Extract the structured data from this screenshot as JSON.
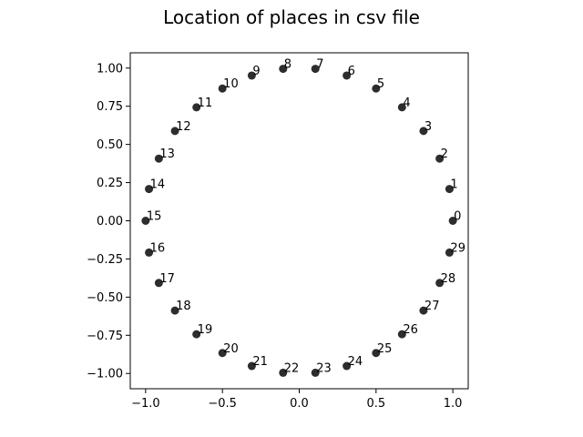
{
  "chart_data": {
    "type": "scatter",
    "title": "Location of places in csv file",
    "xlabel": "",
    "ylabel": "",
    "xlim": [
      -1.1,
      1.1
    ],
    "ylim": [
      -1.1,
      1.1
    ],
    "grid": false,
    "marker_color": "#222222",
    "x_ticks": [
      {
        "value": -1.0,
        "label": "−1.0"
      },
      {
        "value": -0.5,
        "label": "−0.5"
      },
      {
        "value": 0.0,
        "label": "0.0"
      },
      {
        "value": 0.5,
        "label": "0.5"
      },
      {
        "value": 1.0,
        "label": "1.0"
      }
    ],
    "y_ticks": [
      {
        "value": 1.0,
        "label": "1.00"
      },
      {
        "value": 0.75,
        "label": "0.75"
      },
      {
        "value": 0.5,
        "label": "0.50"
      },
      {
        "value": 0.25,
        "label": "0.25"
      },
      {
        "value": 0.0,
        "label": "0.00"
      },
      {
        "value": -0.25,
        "label": "−0.25"
      },
      {
        "value": -0.5,
        "label": "−0.50"
      },
      {
        "value": -0.75,
        "label": "−0.75"
      },
      {
        "value": -1.0,
        "label": "−1.00"
      }
    ],
    "points": [
      {
        "label": "0",
        "x": 1.0,
        "y": 0.0
      },
      {
        "label": "1",
        "x": 0.978,
        "y": 0.208
      },
      {
        "label": "2",
        "x": 0.914,
        "y": 0.407
      },
      {
        "label": "3",
        "x": 0.809,
        "y": 0.588
      },
      {
        "label": "4",
        "x": 0.669,
        "y": 0.743
      },
      {
        "label": "5",
        "x": 0.5,
        "y": 0.866
      },
      {
        "label": "6",
        "x": 0.309,
        "y": 0.951
      },
      {
        "label": "7",
        "x": 0.105,
        "y": 0.995
      },
      {
        "label": "8",
        "x": -0.105,
        "y": 0.995
      },
      {
        "label": "9",
        "x": -0.309,
        "y": 0.951
      },
      {
        "label": "10",
        "x": -0.5,
        "y": 0.866
      },
      {
        "label": "11",
        "x": -0.669,
        "y": 0.743
      },
      {
        "label": "12",
        "x": -0.809,
        "y": 0.588
      },
      {
        "label": "13",
        "x": -0.914,
        "y": 0.407
      },
      {
        "label": "14",
        "x": -0.978,
        "y": 0.208
      },
      {
        "label": "15",
        "x": -1.0,
        "y": 0.0
      },
      {
        "label": "16",
        "x": -0.978,
        "y": -0.208
      },
      {
        "label": "17",
        "x": -0.914,
        "y": -0.407
      },
      {
        "label": "18",
        "x": -0.809,
        "y": -0.588
      },
      {
        "label": "19",
        "x": -0.669,
        "y": -0.743
      },
      {
        "label": "20",
        "x": -0.5,
        "y": -0.866
      },
      {
        "label": "21",
        "x": -0.309,
        "y": -0.951
      },
      {
        "label": "22",
        "x": -0.105,
        "y": -0.995
      },
      {
        "label": "23",
        "x": 0.105,
        "y": -0.995
      },
      {
        "label": "24",
        "x": 0.309,
        "y": -0.951
      },
      {
        "label": "25",
        "x": 0.5,
        "y": -0.866
      },
      {
        "label": "26",
        "x": 0.669,
        "y": -0.743
      },
      {
        "label": "27",
        "x": 0.809,
        "y": -0.588
      },
      {
        "label": "28",
        "x": 0.914,
        "y": -0.407
      },
      {
        "label": "29",
        "x": 0.978,
        "y": -0.208
      }
    ]
  }
}
